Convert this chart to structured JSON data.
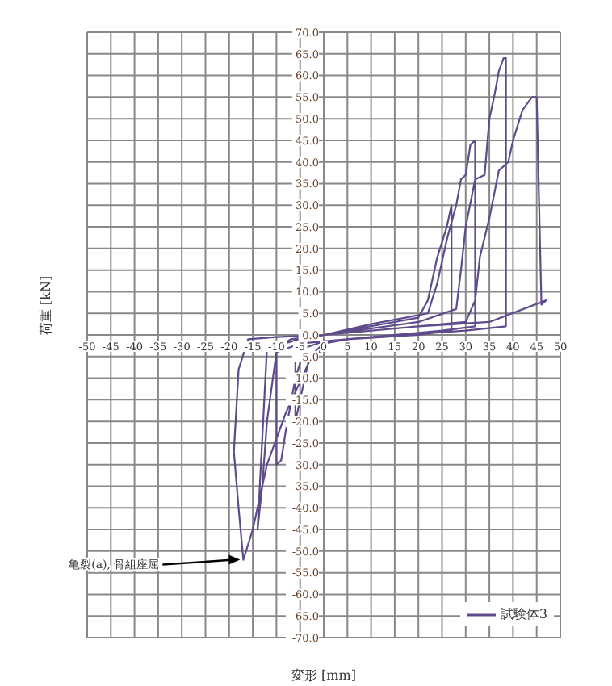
{
  "chart_data": {
    "type": "line",
    "xlabel": "変形 [mm]",
    "ylabel": "荷重 [kN]",
    "legend": "bottom right",
    "grid": true,
    "marker": "none",
    "line_style": "solid",
    "xlim": [
      -50,
      50
    ],
    "xticks": [
      -50,
      -45,
      -40,
      -35,
      -30,
      -25,
      -20,
      -15,
      -10,
      -5,
      0,
      5,
      10,
      15,
      20,
      25,
      30,
      35,
      40,
      45,
      50
    ],
    "ylim": [
      -70,
      70
    ],
    "yticks": [
      {
        "value": -70,
        "label": "-70.0"
      },
      {
        "value": -65,
        "label": "-65.0"
      },
      {
        "value": -60,
        "label": "-60.0"
      },
      {
        "value": -55,
        "label": "-55.0"
      },
      {
        "value": -50,
        "label": "-50.0"
      },
      {
        "value": -45,
        "label": "-45.0"
      },
      {
        "value": -40,
        "label": "-40.0"
      },
      {
        "value": -35,
        "label": "-35.0"
      },
      {
        "value": -30,
        "label": "-30.0"
      },
      {
        "value": -25,
        "label": "-25.0"
      },
      {
        "value": -20,
        "label": "-20.0"
      },
      {
        "value": -15,
        "label": "-15.0"
      },
      {
        "value": -10,
        "label": "-10.0"
      },
      {
        "value": -5,
        "label": "-5.0"
      },
      {
        "value": 0,
        "label": "0.0"
      },
      {
        "value": 5,
        "label": "5.0"
      },
      {
        "value": 10,
        "label": "10.0"
      },
      {
        "value": 15,
        "label": "15.0"
      },
      {
        "value": 20,
        "label": "20.0"
      },
      {
        "value": 25,
        "label": "25.0"
      },
      {
        "value": 30,
        "label": "30.0"
      },
      {
        "value": 35,
        "label": "35.0"
      },
      {
        "value": 40,
        "label": "40.0"
      },
      {
        "value": 45,
        "label": "45.0"
      },
      {
        "value": 50,
        "label": "50.0"
      },
      {
        "value": 55,
        "label": "55.0"
      },
      {
        "value": 60,
        "label": "60.0"
      },
      {
        "value": 65,
        "label": "65.0"
      },
      {
        "value": 70,
        "label": "70.0"
      }
    ],
    "annotations": [
      {
        "text": "亀裂(a), 骨組座屈",
        "x": -17,
        "y": -52
      }
    ],
    "series": [
      {
        "name": "試験体3",
        "color": "#5e4b8b",
        "x": [
          0,
          5,
          10,
          20,
          22,
          24,
          26,
          27,
          27,
          20,
          5,
          0,
          -3,
          -5,
          -6,
          -6,
          -3,
          0,
          10,
          22,
          24,
          26,
          28,
          29,
          30,
          31,
          32,
          32,
          25,
          10,
          0,
          -4,
          -6,
          -8,
          -9,
          -10,
          -10,
          -7,
          0,
          20,
          28,
          29,
          30,
          32,
          34,
          35,
          36,
          37,
          38,
          38.5,
          38.5,
          30,
          10,
          -5,
          -10,
          -12,
          -13,
          -14,
          -12,
          -5,
          0,
          20,
          30,
          32,
          33,
          35,
          37,
          39,
          40,
          42,
          44,
          45,
          46,
          47,
          35,
          20,
          0,
          -10,
          -16,
          -18,
          -19,
          -18,
          -17,
          -15,
          -12,
          -8,
          -3,
          0
        ],
        "values": [
          0,
          1,
          2,
          4,
          8,
          18,
          25,
          30,
          1,
          0,
          -1,
          -2,
          -5,
          -15,
          -20,
          -2,
          -1,
          0,
          2.5,
          5,
          12,
          22,
          30,
          36,
          37,
          44,
          45,
          2,
          1,
          -0.5,
          -1.5,
          -3,
          -10,
          -22,
          -29,
          -30,
          -3,
          -1,
          0,
          3,
          6,
          15,
          25,
          36,
          37,
          50,
          55,
          61,
          64,
          64,
          2,
          1,
          -0.5,
          -2,
          -4,
          -20,
          -35,
          -45,
          -3,
          -1,
          0,
          2,
          3,
          8,
          18,
          27,
          38,
          40,
          45,
          52,
          55,
          55,
          7,
          8,
          3,
          2,
          0,
          -0.5,
          -1,
          -8,
          -27,
          -40,
          -52,
          -45,
          -30,
          -18,
          -6,
          -3
        ]
      }
    ]
  }
}
